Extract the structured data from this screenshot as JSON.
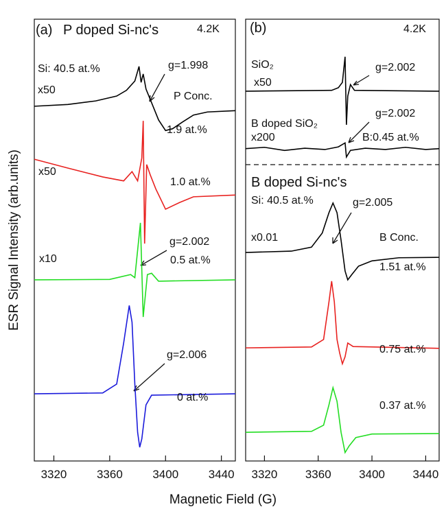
{
  "chart_data": [
    {
      "type": "line",
      "panel": "(a)",
      "title": "P doped Si-nc's",
      "xlabel": "Magnetic Field (G)",
      "ylabel": "ESR Signal Intensity (arb.units)",
      "xlim": [
        3306,
        3450
      ],
      "xticks": [
        3320,
        3360,
        3400,
        3440
      ],
      "ylim": [
        0,
        100
      ],
      "annotations": [
        "4.2K",
        "Si: 40.5 at.%",
        "g=1.998",
        "x50",
        "P Conc.",
        "x50",
        "x10",
        "g=2.002",
        "g=2.006"
      ],
      "series": [
        {
          "name": "1.9 at.%",
          "color": "#000000",
          "x": [
            3306,
            3330,
            3350,
            3365,
            3372,
            3378,
            3381,
            3382.5,
            3384,
            3386,
            3390,
            3395,
            3400,
            3405,
            3412,
            3420,
            3430,
            3450
          ],
          "values": [
            80.3,
            80.7,
            81.5,
            82.6,
            83.9,
            86.0,
            89.3,
            85.7,
            87.6,
            84.2,
            81.1,
            77.2,
            74.8,
            75.2,
            76.7,
            78.3,
            79.0,
            79.3
          ]
        },
        {
          "name": "1.0 at.%",
          "color": "#e8211f",
          "x": [
            3306,
            3330,
            3355,
            3370,
            3376,
            3380,
            3383,
            3384,
            3385,
            3386.5,
            3389,
            3393,
            3400,
            3410,
            3420,
            3450
          ],
          "values": [
            68.3,
            66.3,
            64.3,
            63.4,
            65.5,
            63.4,
            68.6,
            77.0,
            49.2,
            67.1,
            64.8,
            61.6,
            57.0,
            58.5,
            59.8,
            60.2
          ]
        },
        {
          "name": "0.5 at.%",
          "color": "#22dd22",
          "x": [
            3306,
            3360,
            3375,
            3378,
            3382,
            3384,
            3387,
            3390,
            3395,
            3450
          ],
          "values": [
            41.0,
            41.1,
            42.2,
            41.5,
            53.9,
            32.6,
            42.2,
            42.5,
            40.7,
            41.0
          ]
        },
        {
          "name": "0 at.%",
          "color": "#1a1adb",
          "x": [
            3306,
            3355,
            3365,
            3370,
            3374,
            3376,
            3378,
            3380,
            3381.5,
            3383,
            3386,
            3390,
            3450
          ],
          "values": [
            15.2,
            15.4,
            17.4,
            26.7,
            35.2,
            31.4,
            17.4,
            6.5,
            3.1,
            5.0,
            12.7,
            14.9,
            15.2
          ]
        }
      ]
    },
    {
      "type": "line",
      "panel": "(b)",
      "title": "B doped Si-nc's",
      "xlim": [
        3306,
        3450
      ],
      "xticks": [
        3320,
        3360,
        3400,
        3440
      ],
      "ylim": [
        0,
        100
      ],
      "annotations": [
        "4.2K",
        "SiO₂",
        "x50",
        "g=2.002",
        "g=2.002",
        "B doped SiO₂",
        "x200",
        "B:0.45 at.%",
        "Si: 40.5 at.%",
        "g=2.005",
        "x0.01",
        "B Conc."
      ],
      "series": [
        {
          "name": "SiO₂",
          "color": "#000000",
          "x": [
            3306,
            3370,
            3375,
            3378,
            3380,
            3381,
            3382,
            3384,
            3387,
            3450
          ],
          "values": [
            83.7,
            83.9,
            84.5,
            85.7,
            91.5,
            76.1,
            82.6,
            85.2,
            83.9,
            83.7
          ]
        },
        {
          "name": "B doped SiO₂",
          "color": "#000000",
          "x": [
            3306,
            3320,
            3335,
            3350,
            3365,
            3375,
            3380,
            3381,
            3384,
            3395,
            3410,
            3425,
            3440,
            3450
          ],
          "values": [
            70.7,
            71.0,
            70.3,
            70.8,
            70.5,
            71.1,
            72.0,
            68.8,
            70.3,
            70.8,
            70.5,
            71.0,
            70.5,
            70.7
          ]
        },
        {
          "name": "1.51 at.%",
          "color": "#000000",
          "x": [
            3306,
            3340,
            3355,
            3363,
            3368,
            3371,
            3374,
            3377,
            3380,
            3382,
            3385,
            3390,
            3400,
            3420,
            3450
          ],
          "values": [
            47.2,
            47.5,
            48.4,
            51.6,
            56.2,
            58.4,
            56.2,
            50.0,
            43.0,
            41.0,
            42.2,
            44.1,
            45.3,
            46.0,
            46.1
          ]
        },
        {
          "name": "0.75 at.%",
          "color": "#e8211f",
          "x": [
            3306,
            3355,
            3364,
            3368,
            3370,
            3372,
            3374,
            3376,
            3378,
            3380,
            3382,
            3386,
            3450
          ],
          "values": [
            25.6,
            25.8,
            27.5,
            36.0,
            40.7,
            36.0,
            27.5,
            24.4,
            22.0,
            23.6,
            26.7,
            25.9,
            25.5
          ]
        },
        {
          "name": "0.37 at.%",
          "color": "#22dd22",
          "x": [
            3306,
            3355,
            3364,
            3368,
            3371,
            3374,
            3377,
            3380,
            3383,
            3388,
            3400,
            3450
          ],
          "values": [
            6.5,
            6.7,
            8.1,
            12.7,
            16.6,
            13.5,
            6.5,
            1.9,
            3.4,
            5.3,
            6.1,
            6.2
          ]
        }
      ]
    }
  ]
}
